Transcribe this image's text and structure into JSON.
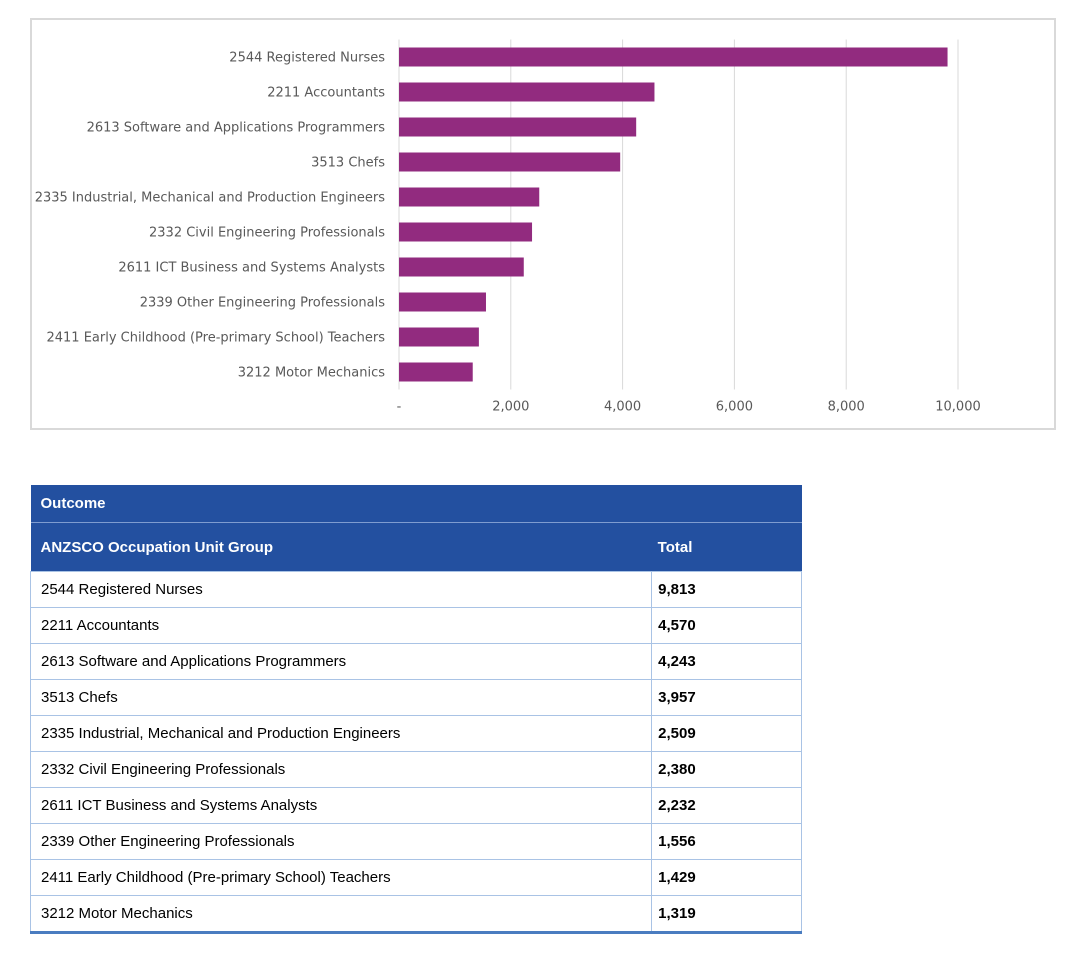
{
  "chart_data": {
    "type": "bar",
    "orientation": "horizontal",
    "categories": [
      "2544 Registered Nurses",
      "2211 Accountants",
      "2613 Software and Applications Programmers",
      "3513 Chefs",
      "2335 Industrial, Mechanical and Production Engineers",
      "2332 Civil Engineering Professionals",
      "2611 ICT Business and Systems Analysts",
      "2339 Other Engineering Professionals",
      "2411 Early Childhood (Pre-primary School) Teachers",
      "3212 Motor Mechanics"
    ],
    "values": [
      9813,
      4570,
      4243,
      3957,
      2509,
      2380,
      2232,
      1556,
      1429,
      1319
    ],
    "xlim": [
      0,
      10000
    ],
    "xticks": [
      0,
      2000,
      4000,
      6000,
      8000,
      10000
    ],
    "xtick_labels": [
      "-",
      "2,000",
      "4,000",
      "6,000",
      "8,000",
      "10,000"
    ],
    "grid": true,
    "bar_color": "#922b7f",
    "title": "",
    "xlabel": "",
    "ylabel": ""
  },
  "table": {
    "group_header": "Outcome",
    "columns": [
      "ANZSCO Occupation Unit Group",
      "Total"
    ],
    "rows": [
      {
        "occupation": "2544 Registered Nurses",
        "total": "9,813"
      },
      {
        "occupation": "2211 Accountants",
        "total": "4,570"
      },
      {
        "occupation": "2613 Software and Applications Programmers",
        "total": "4,243"
      },
      {
        "occupation": "3513 Chefs",
        "total": "3,957"
      },
      {
        "occupation": "2335 Industrial, Mechanical and Production Engineers",
        "total": "2,509"
      },
      {
        "occupation": "2332 Civil Engineering Professionals",
        "total": "2,380"
      },
      {
        "occupation": "2611 ICT Business and Systems Analysts",
        "total": "2,232"
      },
      {
        "occupation": "2339 Other Engineering Professionals",
        "total": "1,556"
      },
      {
        "occupation": "2411 Early Childhood (Pre-primary School) Teachers",
        "total": "1,429"
      },
      {
        "occupation": "3212 Motor Mechanics",
        "total": "1,319"
      }
    ],
    "header_color": "#2350a0"
  }
}
